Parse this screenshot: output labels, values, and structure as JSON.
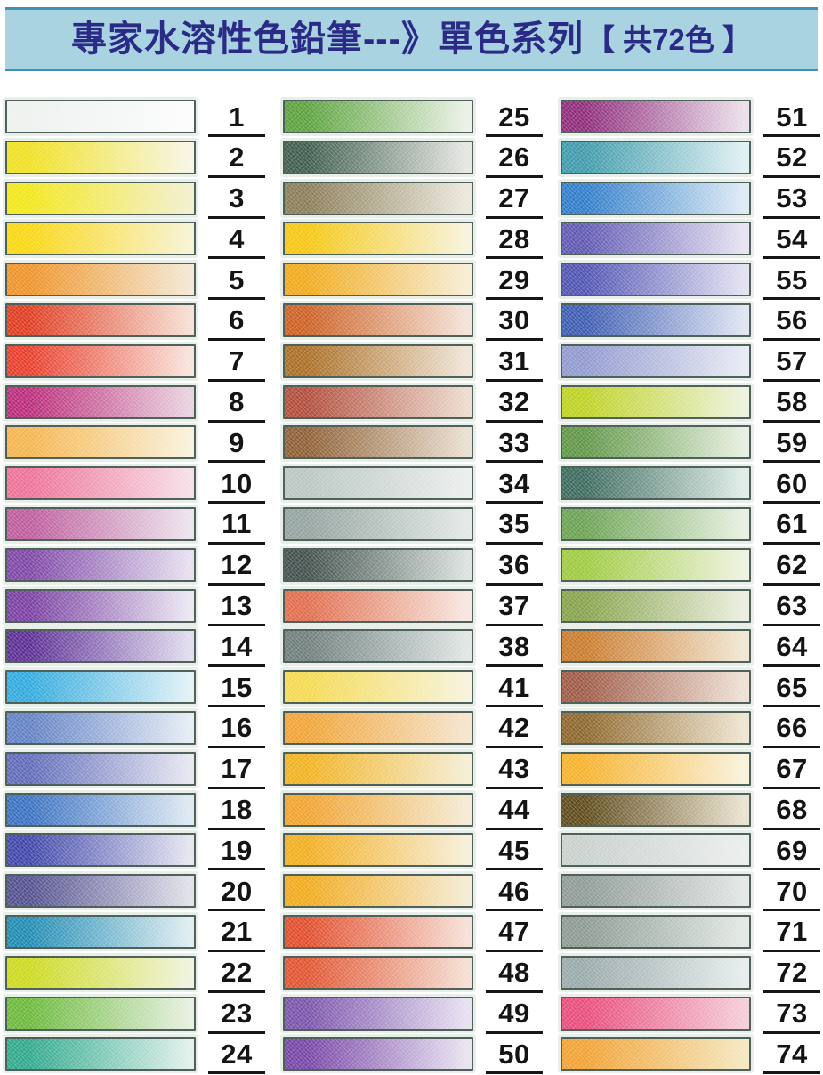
{
  "header": {
    "title_main": "專家水溶性色鉛筆---》單色系列",
    "title_bracket": "【 共72色 】",
    "bar_color": "#a9d3e1",
    "border_color": "#3e93b5",
    "text_color": "#2b2b87"
  },
  "style": {
    "swatch_border_color": "#50605a",
    "swatch_halo_color": "#e8efe9",
    "number_color": "#141414",
    "underline_color": "#161616",
    "page_background": "#ffffff"
  },
  "columns": [
    {
      "name": "column-1",
      "items": [
        {
          "num": "1",
          "from": "#edf1ee",
          "to": "#fbfcfb"
        },
        {
          "num": "2",
          "from": "#f0e01e",
          "to": "#f6f5e2"
        },
        {
          "num": "3",
          "from": "#f2e616",
          "to": "#f2efcb"
        },
        {
          "num": "4",
          "from": "#f9d60e",
          "to": "#f7f2d0"
        },
        {
          "num": "5",
          "from": "#ee9226",
          "to": "#f3e6d0"
        },
        {
          "num": "6",
          "from": "#de3a1e",
          "to": "#f5ddd2"
        },
        {
          "num": "7",
          "from": "#e83c28",
          "to": "#f8e1d9"
        },
        {
          "num": "8",
          "from": "#ba2a78",
          "to": "#e8cfdc"
        },
        {
          "num": "9",
          "from": "#f4b44c",
          "to": "#f9f0d8"
        },
        {
          "num": "10",
          "from": "#ed7096",
          "to": "#f6dce5"
        },
        {
          "num": "11",
          "from": "#bc5a9a",
          "to": "#ebe1eb"
        },
        {
          "num": "12",
          "from": "#7d45a5",
          "to": "#e4deef"
        },
        {
          "num": "13",
          "from": "#783ea0",
          "to": "#e9e5f1"
        },
        {
          "num": "14",
          "from": "#5b2d93",
          "to": "#dfd9ed"
        },
        {
          "num": "15",
          "from": "#2fa9dd",
          "to": "#dff0f5"
        },
        {
          "num": "16",
          "from": "#6080c3",
          "to": "#e3eaf3"
        },
        {
          "num": "17",
          "from": "#5e6ab8",
          "to": "#e5e5f0"
        },
        {
          "num": "18",
          "from": "#3870c0",
          "to": "#dce7f2"
        },
        {
          "num": "19",
          "from": "#3f45a9",
          "to": "#e2e3ef"
        },
        {
          "num": "20",
          "from": "#514f8d",
          "to": "#dedee8"
        },
        {
          "num": "21",
          "from": "#1e8ab2",
          "to": "#dcebf0"
        },
        {
          "num": "22",
          "from": "#ccd91a",
          "to": "#eef2db"
        },
        {
          "num": "23",
          "from": "#6ab83a",
          "to": "#e4efdd"
        },
        {
          "num": "24",
          "from": "#2ea88b",
          "to": "#ddefe9"
        }
      ]
    },
    {
      "name": "column-2",
      "items": [
        {
          "num": "25",
          "from": "#5aa13b",
          "to": "#e9f0e3"
        },
        {
          "num": "26",
          "from": "#3d5c4c",
          "to": "#e3e5e0"
        },
        {
          "num": "27",
          "from": "#897b55",
          "to": "#e9e6da"
        },
        {
          "num": "28",
          "from": "#f5c60d",
          "to": "#f6f2d9"
        },
        {
          "num": "29",
          "from": "#f0a919",
          "to": "#f6ecd1"
        },
        {
          "num": "30",
          "from": "#cc5e21",
          "to": "#f2e1d5"
        },
        {
          "num": "31",
          "from": "#a96d23",
          "to": "#eee3d4"
        },
        {
          "num": "32",
          "from": "#b04b39",
          "to": "#ecd9cc"
        },
        {
          "num": "33",
          "from": "#8c5e32",
          "to": "#e9ddcf"
        },
        {
          "num": "34",
          "from": "#b9c5c1",
          "to": "#e9edeb"
        },
        {
          "num": "35",
          "from": "#92a29e",
          "to": "#e1e7e5"
        },
        {
          "num": "36",
          "from": "#404f4b",
          "to": "#d9e1df"
        },
        {
          "num": "37",
          "from": "#e06b4b",
          "to": "#f6e5dd"
        },
        {
          "num": "38",
          "from": "#6d7d7b",
          "to": "#dde5e3"
        },
        {
          "num": "41",
          "from": "#f4d94d",
          "to": "#f6f2d9"
        },
        {
          "num": "42",
          "from": "#f0a233",
          "to": "#f4e3cb"
        },
        {
          "num": "43",
          "from": "#f0b11d",
          "to": "#f4edd1"
        },
        {
          "num": "44",
          "from": "#f0a22b",
          "to": "#f4e9d2"
        },
        {
          "num": "45",
          "from": "#f2ad1d",
          "to": "#f6eed7"
        },
        {
          "num": "46",
          "from": "#f0a919",
          "to": "#f4ead1"
        },
        {
          "num": "47",
          "from": "#e04b29",
          "to": "#f6ded5"
        },
        {
          "num": "48",
          "from": "#e0522e",
          "to": "#f4ddd1"
        },
        {
          "num": "49",
          "from": "#7a52a9",
          "to": "#e5def0"
        },
        {
          "num": "50",
          "from": "#7644a5",
          "to": "#e7e1f0"
        }
      ]
    },
    {
      "name": "column-3",
      "items": [
        {
          "num": "51",
          "from": "#8d2a79",
          "to": "#e9dde9"
        },
        {
          "num": "52",
          "from": "#3c99a9",
          "to": "#ddeff1"
        },
        {
          "num": "53",
          "from": "#2d7bc9",
          "to": "#dbe9f3"
        },
        {
          "num": "54",
          "from": "#5e57b1",
          "to": "#e5e1f1"
        },
        {
          "num": "55",
          "from": "#4f52b1",
          "to": "#e1e0f1"
        },
        {
          "num": "56",
          "from": "#3b5bb1",
          "to": "#dde3f1"
        },
        {
          "num": "57",
          "from": "#8f98cd",
          "to": "#e5e9f3"
        },
        {
          "num": "58",
          "from": "#bdd121",
          "to": "#ebf1db"
        },
        {
          "num": "59",
          "from": "#5e9545",
          "to": "#e5eedd"
        },
        {
          "num": "60",
          "from": "#3b695d",
          "to": "#ddebe5"
        },
        {
          "num": "61",
          "from": "#69a151",
          "to": "#e7efdf"
        },
        {
          "num": "62",
          "from": "#9dc93d",
          "to": "#ecf2dd"
        },
        {
          "num": "63",
          "from": "#85a149",
          "to": "#e9eddd"
        },
        {
          "num": "64",
          "from": "#c97929",
          "to": "#f1e5d1"
        },
        {
          "num": "65",
          "from": "#9d5945",
          "to": "#eedfd3"
        },
        {
          "num": "66",
          "from": "#8b6529",
          "to": "#ede3cd"
        },
        {
          "num": "67",
          "from": "#f6b129",
          "to": "#f9f1d9"
        },
        {
          "num": "68",
          "from": "#5d4919",
          "to": "#e9e1cd"
        },
        {
          "num": "69",
          "from": "#c8d0cc",
          "to": "#e9edeb"
        },
        {
          "num": "70",
          "from": "#8d9995",
          "to": "#e1e5e3"
        },
        {
          "num": "71",
          "from": "#8b9991",
          "to": "#e1e7e3"
        },
        {
          "num": "72",
          "from": "#99a9a9",
          "to": "#e5ebeb"
        },
        {
          "num": "73",
          "from": "#e84a79",
          "to": "#f4cad6"
        },
        {
          "num": "74",
          "from": "#f0a131",
          "to": "#f4e5bb"
        }
      ]
    }
  ]
}
